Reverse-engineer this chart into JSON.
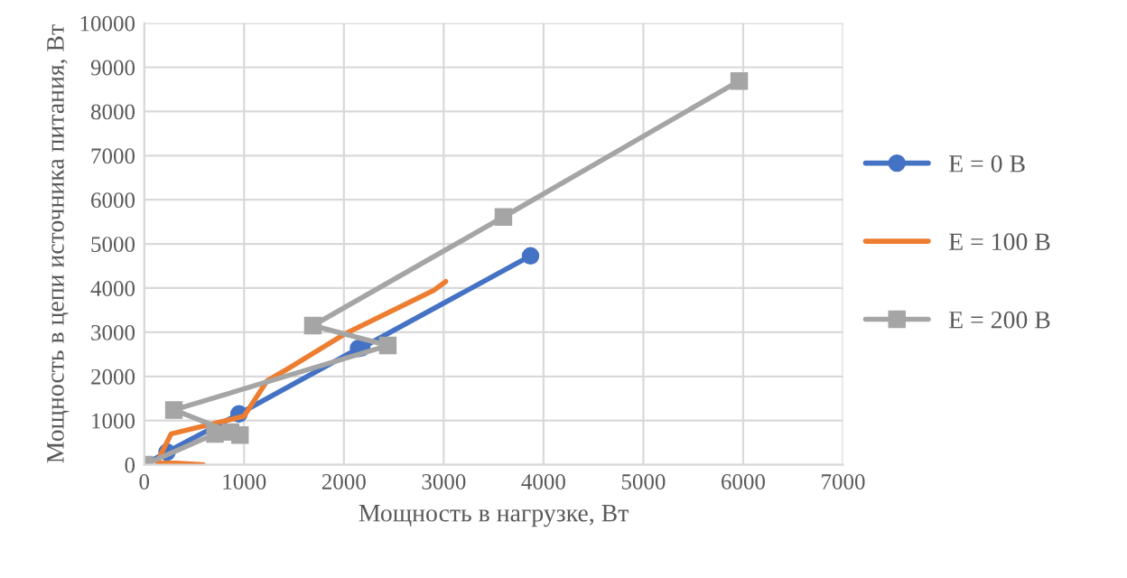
{
  "chart_data": {
    "type": "line",
    "xlabel": "Мощность в нагрузке, Вт",
    "ylabel": "Мощность в цепи источника питания, Вт",
    "xlim": [
      0,
      7000
    ],
    "xticks": [
      0,
      1000,
      2000,
      3000,
      4000,
      5000,
      6000,
      7000
    ],
    "ylim": [
      0,
      10000
    ],
    "yticks": [
      0,
      1000,
      2000,
      3000,
      4000,
      5000,
      6000,
      7000,
      8000,
      9000,
      10000
    ],
    "grid": true,
    "legend": "right",
    "series": [
      {
        "name": "E = 0 В",
        "color": "#4472c4",
        "marker": "circle",
        "x": [
          0,
          228,
          949,
          2146,
          2180,
          3870
        ],
        "values": [
          0,
          287,
          1150,
          2635,
          2650,
          4730
        ]
      },
      {
        "name": "E = 100 В",
        "color": "#ed7d31",
        "marker": "none",
        "x": [
          590,
          350,
          130,
          180,
          270,
          640,
          1000,
          1230,
          1460,
          2000,
          2900,
          3020
        ],
        "values": [
          0,
          30,
          60,
          300,
          700,
          900,
          1100,
          1900,
          2200,
          2950,
          3950,
          4150
        ]
      },
      {
        "name": "E = 200 В",
        "color": "#a5a5a5",
        "marker": "square",
        "x": [
          0,
          708,
          959,
          865,
          297,
          2440,
          1689,
          3598,
          5960
        ],
        "values": [
          0,
          697,
          670,
          740,
          1240,
          2700,
          3150,
          5610,
          8690
        ]
      }
    ]
  }
}
